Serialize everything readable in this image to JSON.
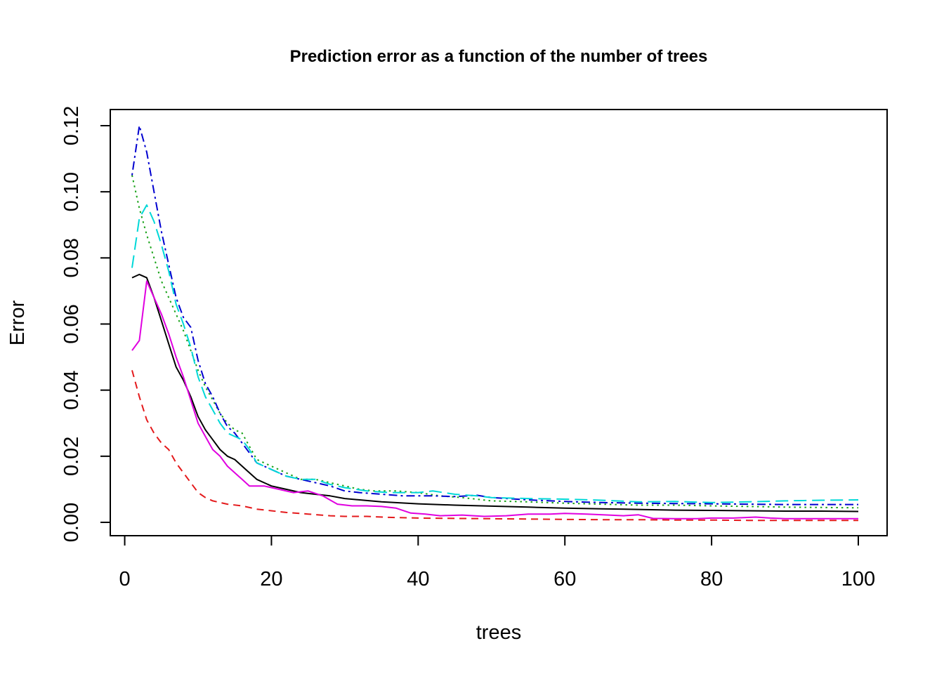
{
  "chart_data": {
    "type": "line",
    "title": "Prediction error as a function of the number of trees",
    "xlabel": "trees",
    "ylabel": "Error",
    "xlim": [
      1,
      100
    ],
    "ylim": [
      0,
      0.12
    ],
    "x_ticks": [
      0,
      20,
      40,
      60,
      80,
      100
    ],
    "y_ticks": [
      0.0,
      0.02,
      0.04,
      0.06,
      0.08,
      0.1,
      0.12
    ],
    "x_tick_labels": [
      "0",
      "20",
      "40",
      "60",
      "80",
      "100"
    ],
    "y_tick_labels": [
      "0.00",
      "0.02",
      "0.04",
      "0.06",
      "0.08",
      "0.10",
      "0.12"
    ],
    "grid": false,
    "legend": "none",
    "series": [
      {
        "color": "#000000",
        "style": "solid",
        "points": [
          [
            1,
            0.074
          ],
          [
            2,
            0.075
          ],
          [
            3,
            0.074
          ],
          [
            4,
            0.068
          ],
          [
            5,
            0.061
          ],
          [
            6,
            0.054
          ],
          [
            7,
            0.047
          ],
          [
            8,
            0.043
          ],
          [
            9,
            0.038
          ],
          [
            10,
            0.032
          ],
          [
            11,
            0.028
          ],
          [
            12,
            0.025
          ],
          [
            13,
            0.022
          ],
          [
            14,
            0.02
          ],
          [
            15,
            0.019
          ],
          [
            16,
            0.017
          ],
          [
            17,
            0.015
          ],
          [
            18,
            0.013
          ],
          [
            19,
            0.012
          ],
          [
            20,
            0.011
          ],
          [
            22,
            0.01
          ],
          [
            24,
            0.009
          ],
          [
            26,
            0.0085
          ],
          [
            28,
            0.008
          ],
          [
            30,
            0.0072
          ],
          [
            35,
            0.0062
          ],
          [
            40,
            0.0056
          ],
          [
            45,
            0.0052
          ],
          [
            50,
            0.0049
          ],
          [
            55,
            0.0046
          ],
          [
            60,
            0.0043
          ],
          [
            65,
            0.0041
          ],
          [
            70,
            0.0039
          ],
          [
            75,
            0.0037
          ],
          [
            80,
            0.0036
          ],
          [
            85,
            0.0035
          ],
          [
            90,
            0.0034
          ],
          [
            95,
            0.0034
          ],
          [
            100,
            0.0033
          ]
        ]
      },
      {
        "color": "#e41a1c",
        "style": "dashed",
        "points": [
          [
            1,
            0.046
          ],
          [
            2,
            0.038
          ],
          [
            3,
            0.031
          ],
          [
            4,
            0.027
          ],
          [
            5,
            0.024
          ],
          [
            6,
            0.022
          ],
          [
            7,
            0.018
          ],
          [
            8,
            0.015
          ],
          [
            9,
            0.012
          ],
          [
            10,
            0.009
          ],
          [
            11,
            0.0075
          ],
          [
            12,
            0.0065
          ],
          [
            14,
            0.0055
          ],
          [
            16,
            0.005
          ],
          [
            18,
            0.004
          ],
          [
            20,
            0.0035
          ],
          [
            22,
            0.003
          ],
          [
            25,
            0.0025
          ],
          [
            28,
            0.002
          ],
          [
            30,
            0.0018
          ],
          [
            33,
            0.0018
          ],
          [
            36,
            0.0015
          ],
          [
            40,
            0.0013
          ],
          [
            45,
            0.0012
          ],
          [
            50,
            0.0011
          ],
          [
            55,
            0.001
          ],
          [
            60,
            0.0009
          ],
          [
            65,
            0.0008
          ],
          [
            70,
            0.0008
          ],
          [
            75,
            0.0007
          ],
          [
            80,
            0.0007
          ],
          [
            85,
            0.0006
          ],
          [
            90,
            0.0006
          ],
          [
            95,
            0.0006
          ],
          [
            100,
            0.0006
          ]
        ]
      },
      {
        "color": "#1aa31a",
        "style": "dotted",
        "points": [
          [
            1,
            0.105
          ],
          [
            2,
            0.095
          ],
          [
            3,
            0.087
          ],
          [
            4,
            0.08
          ],
          [
            5,
            0.073
          ],
          [
            6,
            0.068
          ],
          [
            7,
            0.063
          ],
          [
            8,
            0.058
          ],
          [
            9,
            0.052
          ],
          [
            10,
            0.046
          ],
          [
            11,
            0.041
          ],
          [
            12,
            0.037
          ],
          [
            13,
            0.033
          ],
          [
            14,
            0.03
          ],
          [
            15,
            0.028
          ],
          [
            16,
            0.027
          ],
          [
            17,
            0.023
          ],
          [
            18,
            0.019
          ],
          [
            20,
            0.017
          ],
          [
            22,
            0.015
          ],
          [
            24,
            0.013
          ],
          [
            26,
            0.013
          ],
          [
            28,
            0.012
          ],
          [
            30,
            0.011
          ],
          [
            32,
            0.01
          ],
          [
            34,
            0.0095
          ],
          [
            37,
            0.0095
          ],
          [
            40,
            0.009
          ],
          [
            43,
            0.008
          ],
          [
            46,
            0.0075
          ],
          [
            50,
            0.0065
          ],
          [
            55,
            0.0062
          ],
          [
            60,
            0.0058
          ],
          [
            65,
            0.0055
          ],
          [
            70,
            0.0052
          ],
          [
            75,
            0.0052
          ],
          [
            80,
            0.005
          ],
          [
            85,
            0.0048
          ],
          [
            90,
            0.0046
          ],
          [
            95,
            0.0045
          ],
          [
            100,
            0.0044
          ]
        ]
      },
      {
        "color": "#0000d0",
        "style": "dotdash",
        "points": [
          [
            1,
            0.105
          ],
          [
            2,
            0.12
          ],
          [
            3,
            0.112
          ],
          [
            4,
            0.1
          ],
          [
            5,
            0.088
          ],
          [
            6,
            0.078
          ],
          [
            7,
            0.068
          ],
          [
            8,
            0.062
          ],
          [
            9,
            0.059
          ],
          [
            10,
            0.049
          ],
          [
            11,
            0.042
          ],
          [
            12,
            0.038
          ],
          [
            13,
            0.033
          ],
          [
            14,
            0.029
          ],
          [
            15,
            0.027
          ],
          [
            16,
            0.024
          ],
          [
            17,
            0.021
          ],
          [
            18,
            0.018
          ],
          [
            20,
            0.016
          ],
          [
            22,
            0.014
          ],
          [
            24,
            0.013
          ],
          [
            26,
            0.012
          ],
          [
            28,
            0.011
          ],
          [
            30,
            0.0095
          ],
          [
            32,
            0.009
          ],
          [
            35,
            0.0085
          ],
          [
            38,
            0.008
          ],
          [
            42,
            0.008
          ],
          [
            45,
            0.0078
          ],
          [
            48,
            0.0082
          ],
          [
            50,
            0.0075
          ],
          [
            55,
            0.0068
          ],
          [
            60,
            0.0063
          ],
          [
            65,
            0.006
          ],
          [
            70,
            0.0058
          ],
          [
            75,
            0.0057
          ],
          [
            80,
            0.0056
          ],
          [
            85,
            0.0055
          ],
          [
            90,
            0.0054
          ],
          [
            95,
            0.0054
          ],
          [
            100,
            0.0054
          ]
        ]
      },
      {
        "color": "#00d8d8",
        "style": "longdash",
        "points": [
          [
            1,
            0.077
          ],
          [
            2,
            0.092
          ],
          [
            3,
            0.096
          ],
          [
            4,
            0.091
          ],
          [
            5,
            0.084
          ],
          [
            6,
            0.076
          ],
          [
            7,
            0.066
          ],
          [
            8,
            0.06
          ],
          [
            9,
            0.053
          ],
          [
            10,
            0.044
          ],
          [
            11,
            0.038
          ],
          [
            12,
            0.034
          ],
          [
            13,
            0.03
          ],
          [
            14,
            0.027
          ],
          [
            15,
            0.026
          ],
          [
            16,
            0.025
          ],
          [
            17,
            0.022
          ],
          [
            18,
            0.018
          ],
          [
            20,
            0.016
          ],
          [
            22,
            0.014
          ],
          [
            24,
            0.013
          ],
          [
            26,
            0.013
          ],
          [
            28,
            0.0115
          ],
          [
            30,
            0.0105
          ],
          [
            33,
            0.0095
          ],
          [
            36,
            0.009
          ],
          [
            40,
            0.009
          ],
          [
            42,
            0.0095
          ],
          [
            45,
            0.0085
          ],
          [
            48,
            0.008
          ],
          [
            50,
            0.0075
          ],
          [
            55,
            0.0072
          ],
          [
            60,
            0.007
          ],
          [
            65,
            0.0067
          ],
          [
            70,
            0.0062
          ],
          [
            75,
            0.0063
          ],
          [
            80,
            0.006
          ],
          [
            85,
            0.0062
          ],
          [
            90,
            0.0065
          ],
          [
            95,
            0.0067
          ],
          [
            100,
            0.0068
          ]
        ]
      },
      {
        "color": "#e000e0",
        "style": "solid",
        "points": [
          [
            1,
            0.052
          ],
          [
            2,
            0.055
          ],
          [
            3,
            0.073
          ],
          [
            4,
            0.068
          ],
          [
            5,
            0.063
          ],
          [
            6,
            0.057
          ],
          [
            7,
            0.05
          ],
          [
            8,
            0.044
          ],
          [
            9,
            0.037
          ],
          [
            10,
            0.03
          ],
          [
            11,
            0.026
          ],
          [
            12,
            0.022
          ],
          [
            13,
            0.02
          ],
          [
            14,
            0.017
          ],
          [
            15,
            0.015
          ],
          [
            16,
            0.013
          ],
          [
            17,
            0.011
          ],
          [
            19,
            0.011
          ],
          [
            21,
            0.01
          ],
          [
            23,
            0.009
          ],
          [
            25,
            0.0095
          ],
          [
            27,
            0.008
          ],
          [
            29,
            0.0055
          ],
          [
            31,
            0.005
          ],
          [
            33,
            0.005
          ],
          [
            35,
            0.0048
          ],
          [
            37,
            0.0043
          ],
          [
            39,
            0.0028
          ],
          [
            41,
            0.0025
          ],
          [
            43,
            0.002
          ],
          [
            46,
            0.0022
          ],
          [
            49,
            0.0018
          ],
          [
            52,
            0.002
          ],
          [
            55,
            0.0025
          ],
          [
            58,
            0.0025
          ],
          [
            60,
            0.0027
          ],
          [
            63,
            0.0025
          ],
          [
            66,
            0.0022
          ],
          [
            68,
            0.002
          ],
          [
            70,
            0.0023
          ],
          [
            72,
            0.0012
          ],
          [
            75,
            0.0011
          ],
          [
            78,
            0.0011
          ],
          [
            80,
            0.0013
          ],
          [
            83,
            0.0013
          ],
          [
            86,
            0.0016
          ],
          [
            88,
            0.0013
          ],
          [
            90,
            0.0011
          ],
          [
            95,
            0.0011
          ],
          [
            100,
            0.0011
          ]
        ]
      }
    ]
  }
}
